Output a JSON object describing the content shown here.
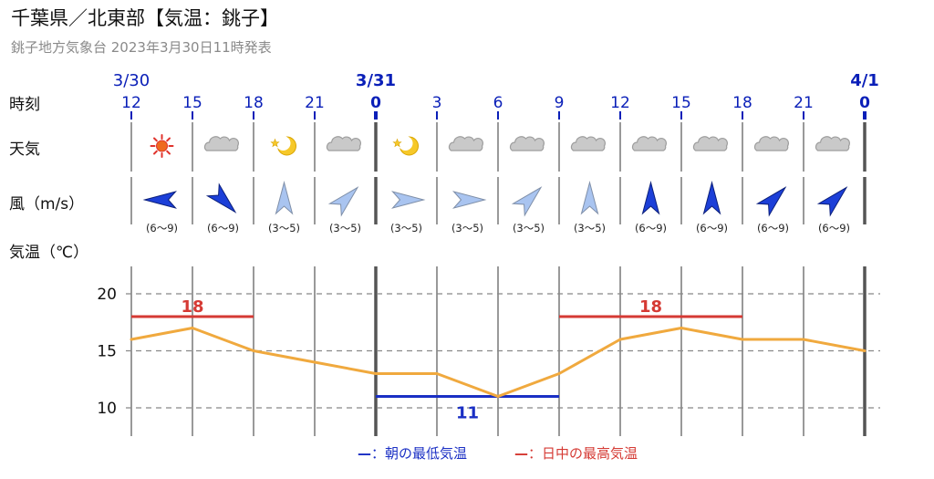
{
  "header": {
    "title": "千葉県／北東部【気温：銚子】",
    "subtitle": "銚子地方気象台 2023年3月30日11時発表"
  },
  "row_labels": {
    "time": "時刻",
    "weather": "天気",
    "wind": "風（m/s）",
    "temp": "気温（℃）"
  },
  "dates": [
    {
      "col": 0,
      "label": "3/30",
      "bold": false
    },
    {
      "col": 4,
      "label": "3/31",
      "bold": true
    },
    {
      "col": 12,
      "label": "4/1",
      "bold": true
    }
  ],
  "hours": [
    "12",
    "15",
    "18",
    "21",
    "0",
    "3",
    "6",
    "9",
    "12",
    "15",
    "18",
    "21",
    "0"
  ],
  "weather_icons": [
    "sun-icon",
    "cloud-icon",
    "moon-icon",
    "cloud-icon",
    "moon-icon",
    "cloud-icon",
    "cloud-icon",
    "cloud-icon",
    "cloud-icon",
    "cloud-icon",
    "cloud-icon",
    "cloud-icon"
  ],
  "winds": [
    {
      "dir_deg": 90,
      "range": "(6〜9)",
      "strong": true
    },
    {
      "dir_deg": 315,
      "range": "(6〜9)",
      "strong": true
    },
    {
      "dir_deg": 180,
      "range": "(3〜5)",
      "strong": false
    },
    {
      "dir_deg": 225,
      "range": "(3〜5)",
      "strong": false
    },
    {
      "dir_deg": 270,
      "range": "(3〜5)",
      "strong": false
    },
    {
      "dir_deg": 270,
      "range": "(3〜5)",
      "strong": false
    },
    {
      "dir_deg": 225,
      "range": "(3〜5)",
      "strong": false
    },
    {
      "dir_deg": 180,
      "range": "(3〜5)",
      "strong": false
    },
    {
      "dir_deg": 180,
      "range": "(6〜9)",
      "strong": true
    },
    {
      "dir_deg": 180,
      "range": "(6〜9)",
      "strong": true
    },
    {
      "dir_deg": 225,
      "range": "(6〜9)",
      "strong": true
    },
    {
      "dir_deg": 225,
      "range": "(6〜9)",
      "strong": true
    }
  ],
  "chart_data": {
    "type": "line",
    "ylabel": "気温（℃）",
    "ylim": [
      6.5,
      22
    ],
    "yticks": [
      10,
      15,
      20
    ],
    "grid": true,
    "x": [
      "3/30 12",
      "15",
      "18",
      "21",
      "3/31 0",
      "3",
      "6",
      "9",
      "12",
      "15",
      "18",
      "21",
      "4/1 0"
    ],
    "series": [
      {
        "values": [
          16,
          17,
          15,
          14,
          13,
          13,
          11,
          13,
          16,
          17,
          16,
          16,
          15
        ]
      }
    ],
    "max_temps": [
      {
        "value": 18,
        "label": "18",
        "from_col": 0,
        "to_col": 2
      },
      {
        "value": 18,
        "label": "18",
        "from_col": 7,
        "to_col": 10
      }
    ],
    "min_temps": [
      {
        "value": 11,
        "label": "11",
        "from_col": 4,
        "to_col": 7
      }
    ],
    "legend": {
      "min_symbol": "—",
      "min_text": "：朝の最低気温",
      "max_symbol": "—",
      "max_text": "：日中の最高気温"
    }
  },
  "colors": {
    "line": "#f0a93e",
    "max": "#d53a34",
    "min": "#1a2fc4",
    "date": "#0a1fb8",
    "grid": "#888888",
    "wind_strong": "#1c3fd8",
    "wind_weak": "#a9c4f0"
  }
}
